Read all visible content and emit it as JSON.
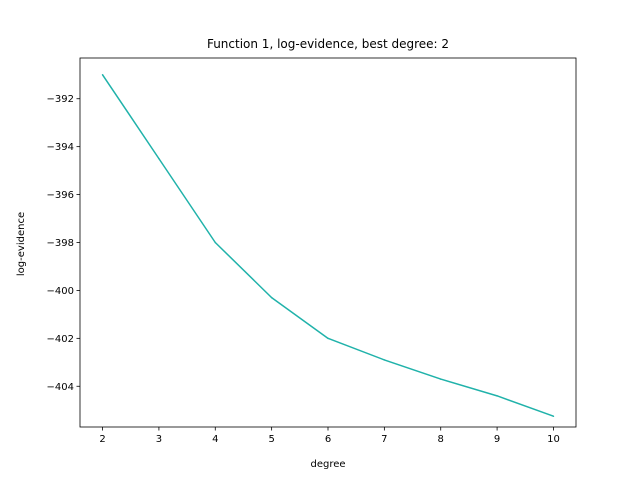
{
  "chart_data": {
    "type": "line",
    "title": "Function 1, log-evidence, best degree: 2",
    "xlabel": "degree",
    "ylabel": "log-evidence",
    "x": [
      2,
      3,
      4,
      5,
      6,
      7,
      8,
      9,
      10
    ],
    "series": [
      {
        "values": [
          -391.0,
          -394.5,
          -398.0,
          -400.3,
          -402.0,
          -402.9,
          -403.7,
          -404.4,
          -405.25
        ],
        "color": "#20b2aa"
      }
    ],
    "xlim": [
      1.6,
      10.4
    ],
    "ylim": [
      -405.7,
      -390.3
    ],
    "xticks": [
      2,
      3,
      4,
      5,
      6,
      7,
      8,
      9,
      10
    ],
    "yticks": [
      -392,
      -394,
      -396,
      -398,
      -400,
      -402,
      -404
    ],
    "ytick_labels": [
      "−392",
      "−394",
      "−396",
      "−398",
      "−400",
      "−402",
      "−404"
    ],
    "grid": false,
    "legend": false
  }
}
